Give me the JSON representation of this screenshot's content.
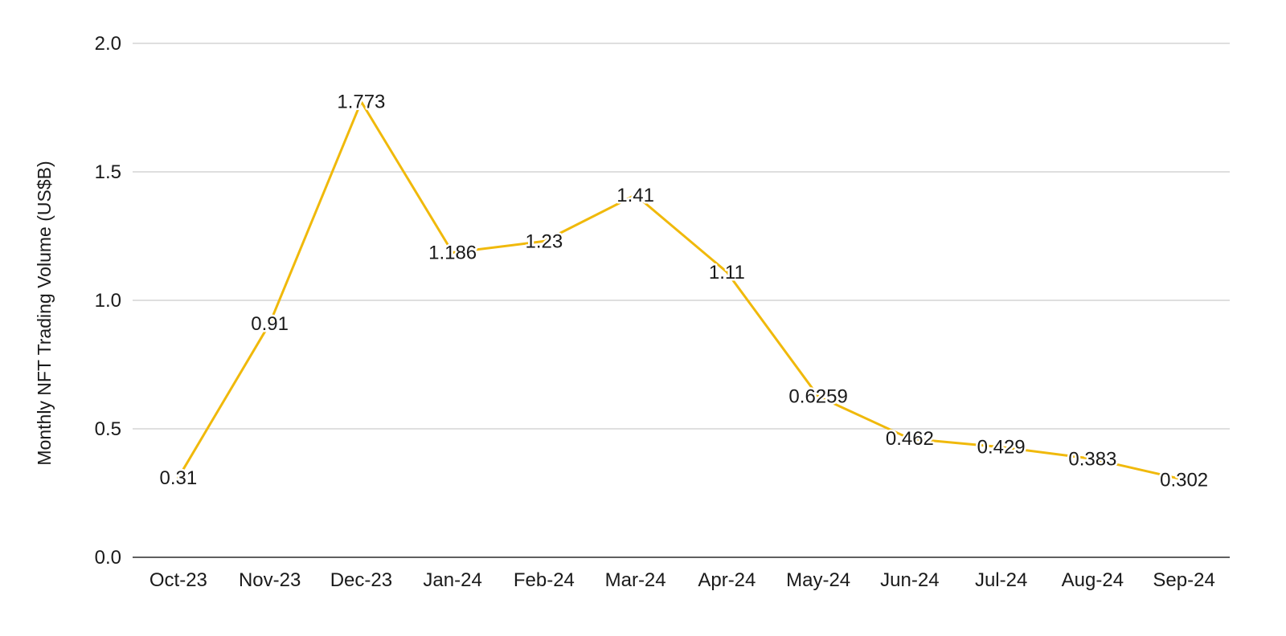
{
  "chart_data": {
    "type": "line",
    "title": "",
    "xlabel": "",
    "ylabel": "Monthly NFT Trading Volume (US$B)",
    "categories": [
      "Oct-23",
      "Nov-23",
      "Dec-23",
      "Jan-24",
      "Feb-24",
      "Mar-24",
      "Apr-24",
      "May-24",
      "Jun-24",
      "Jul-24",
      "Aug-24",
      "Sep-24"
    ],
    "series": [
      {
        "values": [
          0.31,
          0.91,
          1.773,
          1.186,
          1.23,
          1.41,
          1.11,
          0.6259,
          0.462,
          0.429,
          0.383,
          0.302
        ],
        "labels": [
          "0.31",
          "0.91",
          "1.773",
          "1.186",
          "1.23",
          "1.41",
          "1.11",
          "0.6259",
          "0.462",
          "0.429",
          "0.383",
          "0.302"
        ],
        "color": "#F0B90B"
      }
    ],
    "ylim": [
      0,
      2
    ],
    "yticks": [
      "0.0",
      "0.5",
      "1.0",
      "1.5",
      "2.0"
    ],
    "grid": true,
    "legend": "none"
  }
}
